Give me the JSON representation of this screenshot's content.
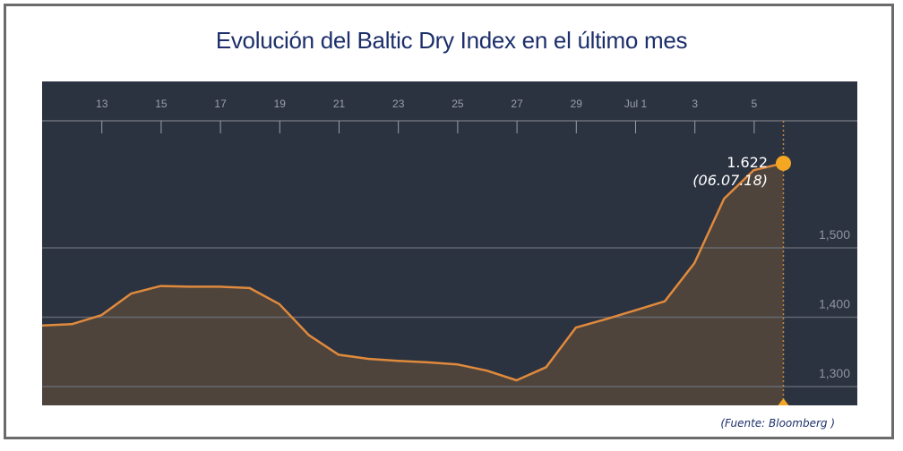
{
  "title": "Evolución del Baltic Dry Index en el último mes",
  "source": "(Fuente: Bloomberg )",
  "callout": {
    "value": "1.622",
    "date": "(06.07.18)"
  },
  "colors": {
    "background": "#2b3240",
    "line": "#e08a3c",
    "fill": "#4e443c",
    "marker": "#f5a623",
    "gridline": "#6c7078",
    "title": "#1c2f6b"
  },
  "chart_data": {
    "type": "area",
    "title": "Evolución del Baltic Dry Index en el último mes",
    "xlabel": "",
    "ylabel": "",
    "x_tick_labels": [
      "13",
      "15",
      "17",
      "19",
      "21",
      "23",
      "25",
      "27",
      "29",
      "Jul 1",
      "3",
      "5"
    ],
    "y_tick_labels": [
      "1,300",
      "1,400",
      "1,500"
    ],
    "ylim": [
      1273,
      1740
    ],
    "grid": true,
    "x": [
      "Jun 11",
      "Jun 12",
      "Jun 13",
      "Jun 14",
      "Jun 15",
      "Jun 16",
      "Jun 17",
      "Jun 18",
      "Jun 19",
      "Jun 20",
      "Jun 21",
      "Jun 22",
      "Jun 23",
      "Jun 24",
      "Jun 25",
      "Jun 26",
      "Jun 27",
      "Jun 28",
      "Jun 29",
      "Jun 30",
      "Jul 1",
      "Jul 2",
      "Jul 3",
      "Jul 4",
      "Jul 5",
      "Jul 6"
    ],
    "series": [
      {
        "name": "Baltic Dry Index",
        "values": [
          1388,
          1390,
          1403,
          1434,
          1445,
          1444,
          1444,
          1442,
          1419,
          1374,
          1346,
          1340,
          1337,
          1335,
          1332,
          1323,
          1309,
          1328,
          1385,
          1397,
          1410,
          1423,
          1478,
          1571,
          1612,
          1622
        ]
      }
    ],
    "annotations": [
      {
        "x": "Jul 6",
        "value": 1622,
        "label": "1.622",
        "sublabel": "(06.07.18)"
      }
    ]
  }
}
